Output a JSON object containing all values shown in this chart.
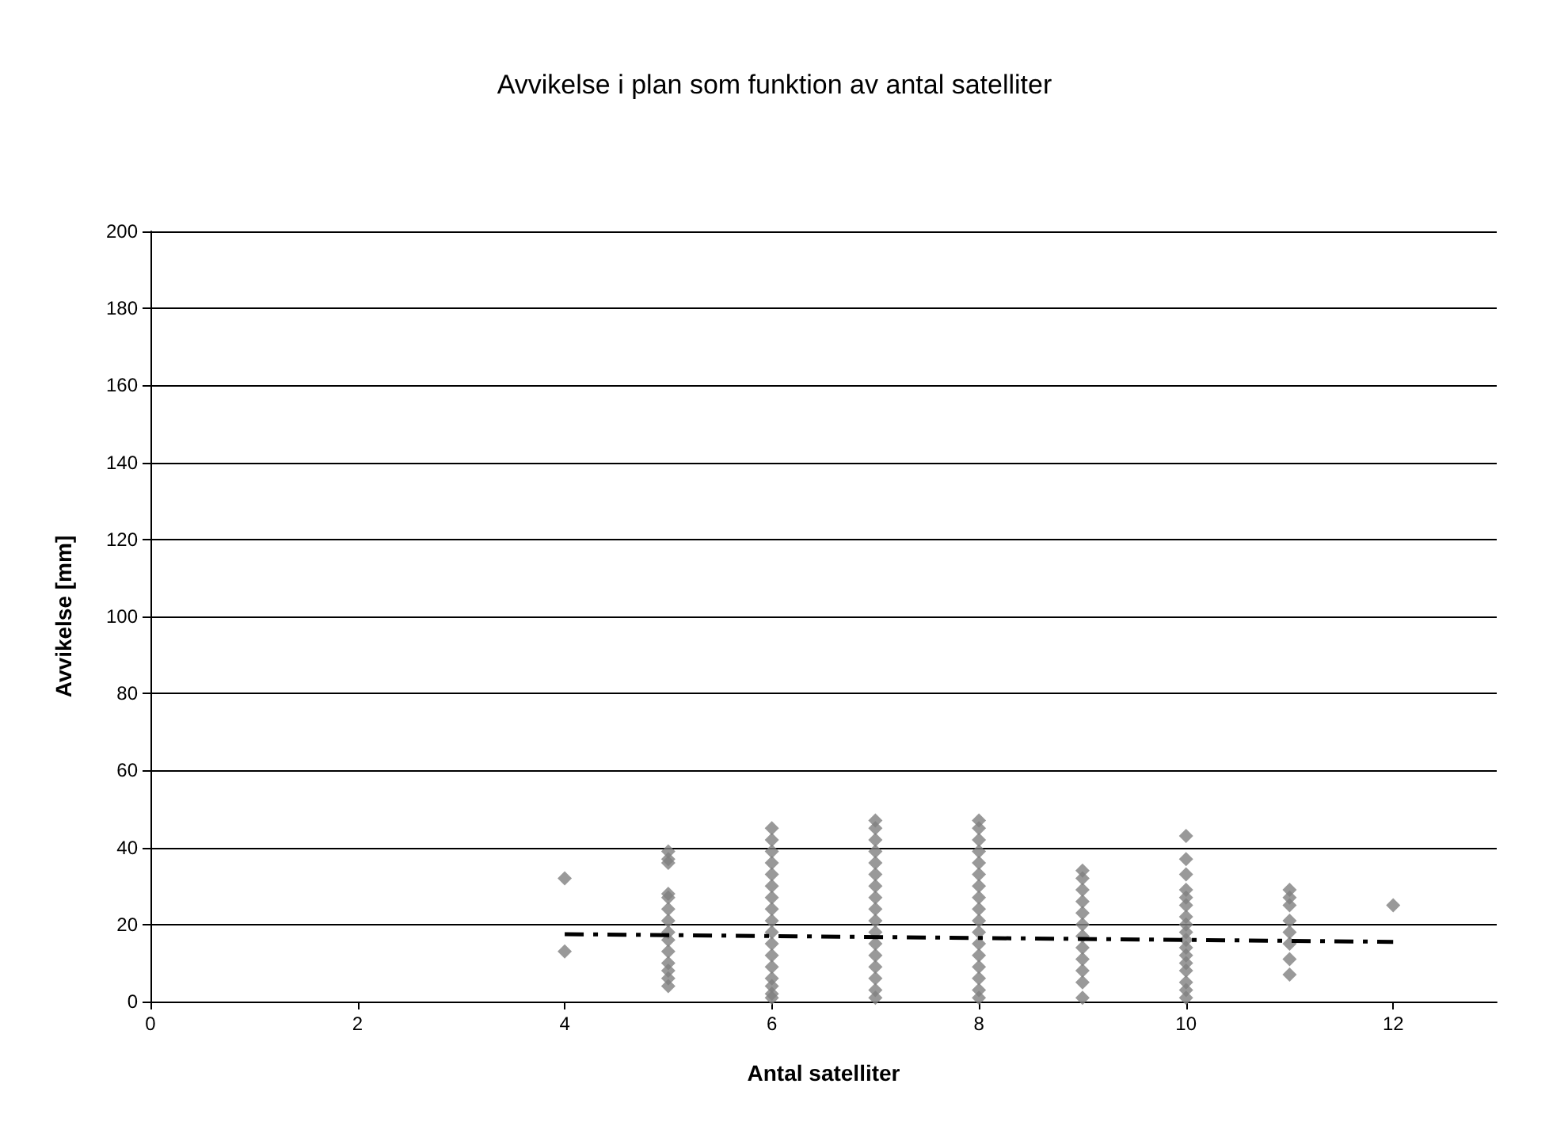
{
  "chart_data": {
    "type": "scatter",
    "title": "Avvikelse i plan som funktion av antal satelliter",
    "xlabel": "Antal satelliter",
    "ylabel": "Avvikelse [mm]",
    "xlim": [
      0,
      13
    ],
    "xticks": [
      0,
      2,
      4,
      6,
      8,
      10,
      12
    ],
    "ylim": [
      0,
      200
    ],
    "yticks": [
      0,
      20,
      40,
      60,
      80,
      100,
      120,
      140,
      160,
      180,
      200
    ],
    "grid": "y",
    "marker": "diamond",
    "series": [
      {
        "color": "#808080",
        "x": [
          4,
          4,
          5,
          5,
          5,
          5,
          5,
          5,
          5,
          5,
          5,
          5,
          5,
          5,
          5,
          5,
          6,
          6,
          6,
          6,
          6,
          6,
          6,
          6,
          6,
          6,
          6,
          6,
          6,
          6,
          6,
          6,
          6,
          7,
          7,
          7,
          7,
          7,
          7,
          7,
          7,
          7,
          7,
          7,
          7,
          7,
          7,
          7,
          7,
          7,
          8,
          8,
          8,
          8,
          8,
          8,
          8,
          8,
          8,
          8,
          8,
          8,
          8,
          8,
          8,
          8,
          8,
          9,
          9,
          9,
          9,
          9,
          9,
          9,
          9,
          9,
          9,
          9,
          9,
          10,
          10,
          10,
          10,
          10,
          10,
          10,
          10,
          10,
          10,
          10,
          10,
          10,
          10,
          10,
          10,
          10,
          11,
          11,
          11,
          11,
          11,
          11,
          11,
          11,
          12
        ],
        "values": [
          32,
          13,
          39,
          37,
          36,
          28,
          27,
          24,
          21,
          18,
          16,
          13,
          10,
          8,
          6,
          4,
          45,
          42,
          39,
          36,
          33,
          30,
          27,
          24,
          21,
          18,
          15,
          12,
          9,
          6,
          4,
          2,
          1,
          47,
          45,
          42,
          39,
          36,
          33,
          30,
          27,
          24,
          21,
          18,
          15,
          12,
          9,
          6,
          3,
          1,
          47,
          45,
          42,
          39,
          36,
          33,
          30,
          27,
          24,
          21,
          18,
          15,
          12,
          9,
          6,
          3,
          1,
          34,
          32,
          29,
          26,
          23,
          20,
          17,
          14,
          11,
          8,
          5,
          1,
          43,
          37,
          33,
          29,
          27,
          25,
          22,
          20,
          18,
          16,
          14,
          12,
          10,
          8,
          5,
          3,
          1,
          29,
          27,
          25,
          21,
          18,
          15,
          11,
          7,
          25
        ]
      },
      {
        "type": "line",
        "color": "#000000",
        "x": [
          4,
          12
        ],
        "values": [
          17.5,
          15.5
        ],
        "marker": "none",
        "line_style": "dashed"
      }
    ]
  }
}
